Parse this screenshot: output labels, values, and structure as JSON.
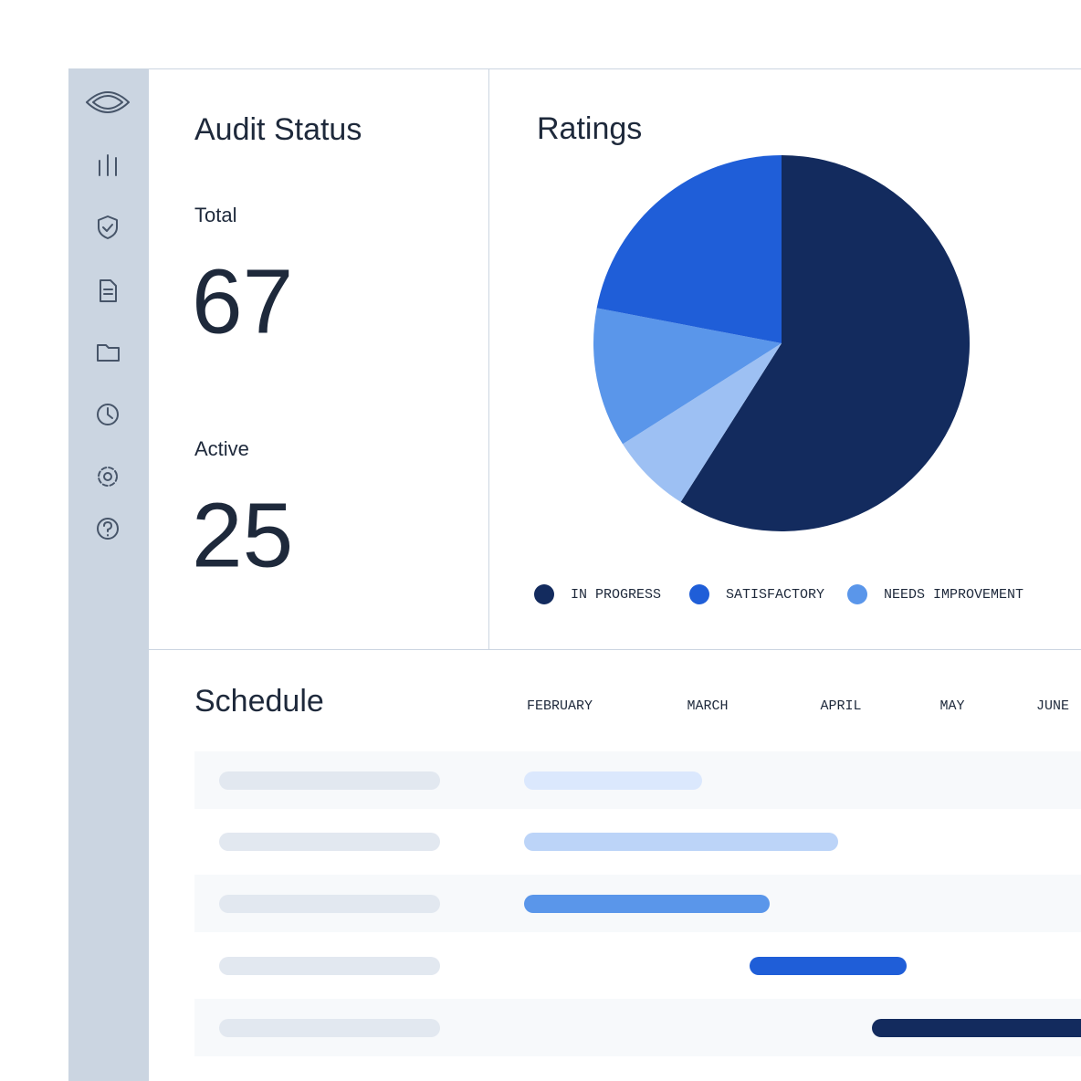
{
  "sidebar": {},
  "audit_status": {
    "title": "Audit Status",
    "total_label": "Total",
    "total_value": "67",
    "active_label": "Active",
    "active_value": "25"
  },
  "chart_data": {
    "type": "pie",
    "title": "Ratings",
    "categories": [
      "IN PROGRESS",
      "SATISFACTORY",
      "NEEDS IMPROVEMENT",
      null
    ],
    "values": [
      59,
      22,
      12,
      7
    ],
    "colors": [
      "#132b5e",
      "#1f5ed8",
      "#5a96ea",
      "#9dc0f3"
    ]
  },
  "schedule": {
    "title": "Schedule",
    "months": [
      "FEBRUARY",
      "MARCH",
      "APRIL",
      "MAY",
      "JUNE"
    ]
  }
}
